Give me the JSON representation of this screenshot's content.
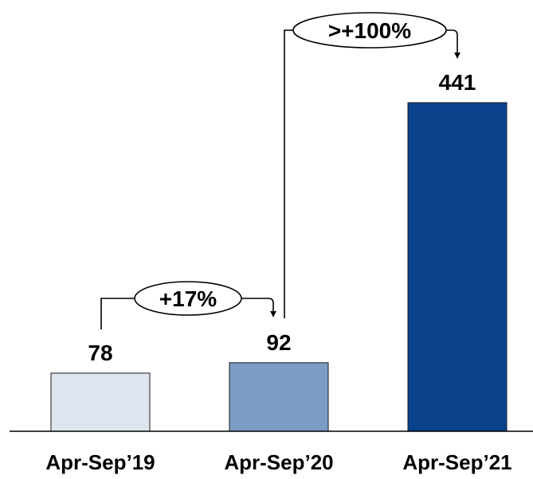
{
  "chart_data": {
    "type": "bar",
    "categories": [
      "Apr-Sep’19",
      "Apr-Sep’20",
      "Apr-Sep’21"
    ],
    "values": [
      78,
      92,
      441
    ],
    "data_labels": [
      "78",
      "92",
      "441"
    ],
    "colors": [
      "#dde5ef",
      "#7b9cc4",
      "#0a428c"
    ],
    "ylim": [
      0,
      441
    ],
    "title": "",
    "xlabel": "",
    "ylabel": "",
    "grid": false,
    "annotations": [
      {
        "from": 0,
        "to": 1,
        "label": "+17%"
      },
      {
        "from": 1,
        "to": 2,
        "label": ">+100%"
      }
    ]
  }
}
